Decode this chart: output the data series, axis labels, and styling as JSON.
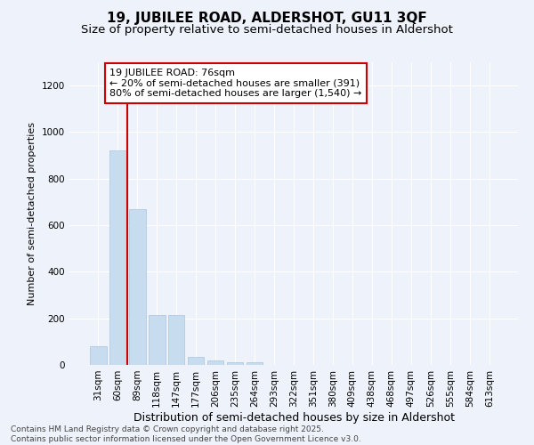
{
  "title": "19, JUBILEE ROAD, ALDERSHOT, GU11 3QF",
  "subtitle": "Size of property relative to semi-detached houses in Aldershot",
  "xlabel": "Distribution of semi-detached houses by size in Aldershot",
  "ylabel": "Number of semi-detached properties",
  "categories": [
    "31sqm",
    "60sqm",
    "89sqm",
    "118sqm",
    "147sqm",
    "177sqm",
    "206sqm",
    "235sqm",
    "264sqm",
    "293sqm",
    "322sqm",
    "351sqm",
    "380sqm",
    "409sqm",
    "438sqm",
    "468sqm",
    "497sqm",
    "526sqm",
    "555sqm",
    "584sqm",
    "613sqm"
  ],
  "values": [
    80,
    920,
    670,
    215,
    215,
    35,
    20,
    12,
    10,
    0,
    0,
    0,
    0,
    0,
    0,
    0,
    0,
    0,
    0,
    0,
    0
  ],
  "bar_color": "#c8dcf0",
  "bar_edge_color": "#a8c4e0",
  "vline_x_idx": 1.5,
  "vline_color": "#cc0000",
  "annotation_text": "19 JUBILEE ROAD: 76sqm\n← 20% of semi-detached houses are smaller (391)\n80% of semi-detached houses are larger (1,540) →",
  "annotation_box_color": "#ffffff",
  "annotation_box_edge": "#cc0000",
  "ylim": [
    0,
    1300
  ],
  "yticks": [
    0,
    200,
    400,
    600,
    800,
    1000,
    1200
  ],
  "background_color": "#eef2fa",
  "grid_color": "#ffffff",
  "footer_text": "Contains HM Land Registry data © Crown copyright and database right 2025.\nContains public sector information licensed under the Open Government Licence v3.0.",
  "title_fontsize": 11,
  "subtitle_fontsize": 9.5,
  "xlabel_fontsize": 9,
  "ylabel_fontsize": 8,
  "tick_fontsize": 7.5,
  "annotation_fontsize": 8,
  "footer_fontsize": 6.5
}
